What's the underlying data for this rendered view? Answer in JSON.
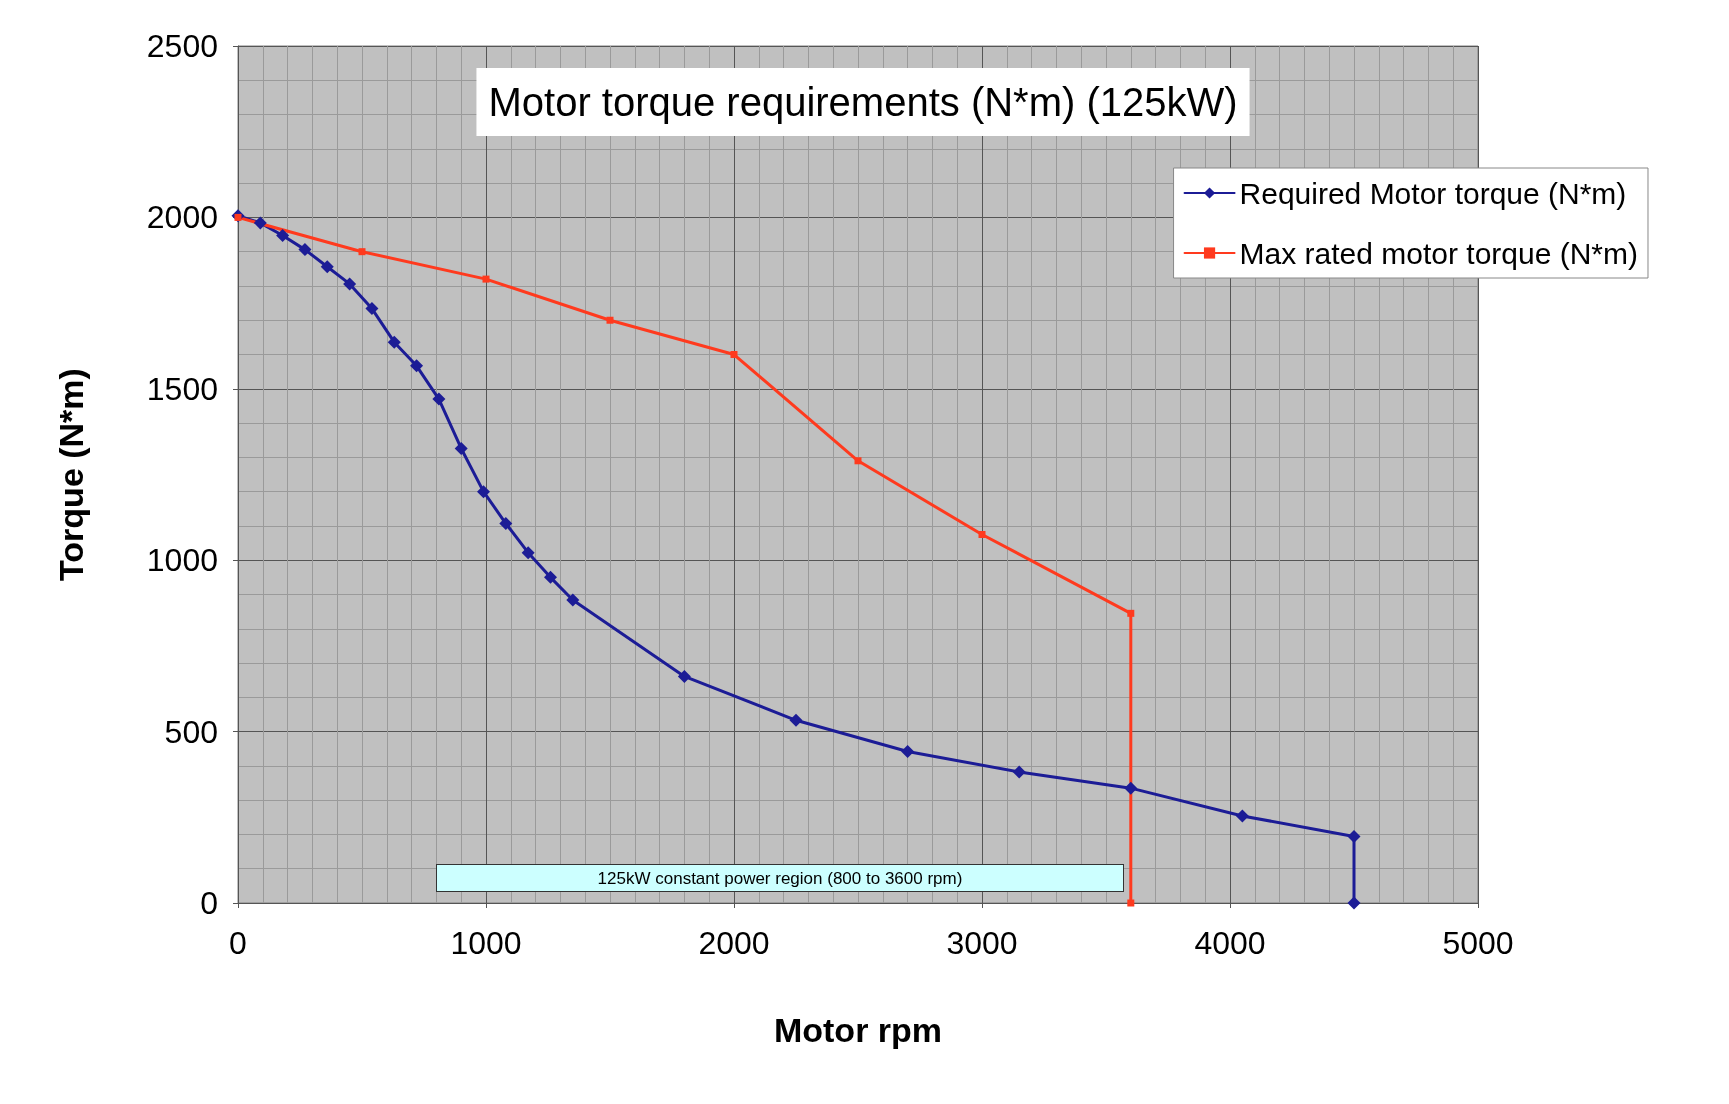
{
  "chart_data": {
    "type": "line",
    "title": "Motor torque requirements (N*m) (125kW)",
    "xlabel": "Motor rpm",
    "ylabel": "Torque (N*m)",
    "xlim": [
      0,
      5000
    ],
    "xticks": [
      0,
      1000,
      2000,
      3000,
      4000,
      5000
    ],
    "ylim": [
      0,
      2500
    ],
    "yticks": [
      0,
      500,
      1000,
      1500,
      2000,
      2500
    ],
    "grid": true,
    "legend": "top right",
    "line_style": "solid",
    "annotations": [
      "125kW constant power region (800 to 3600 rpm)"
    ],
    "series": [
      {
        "name": "Required Motor torque (N*m)",
        "color": "#1c1c96",
        "marker": "diamond",
        "x": [
          0,
          90,
          180,
          270,
          360,
          450,
          540,
          630,
          720,
          810,
          900,
          990,
          1080,
          1170,
          1260,
          1350,
          1800,
          2250,
          2700,
          3150,
          3600,
          4050,
          4500,
          4500
        ],
        "values": [
          2005,
          1984,
          1947,
          1906,
          1856,
          1806,
          1734,
          1636,
          1567,
          1470,
          1326,
          1200,
          1107,
          1022,
          950,
          884,
          661,
          533,
          442,
          382,
          335,
          254,
          194,
          0
        ]
      },
      {
        "name": "Max rated motor torque (N*m)",
        "color": "#ff3a1e",
        "marker": "square",
        "x": [
          0,
          500,
          1000,
          1500,
          2000,
          2500,
          3000,
          3600,
          3600
        ],
        "values": [
          2000,
          1900,
          1820,
          1700,
          1600,
          1290,
          1075,
          845,
          0
        ]
      }
    ]
  }
}
